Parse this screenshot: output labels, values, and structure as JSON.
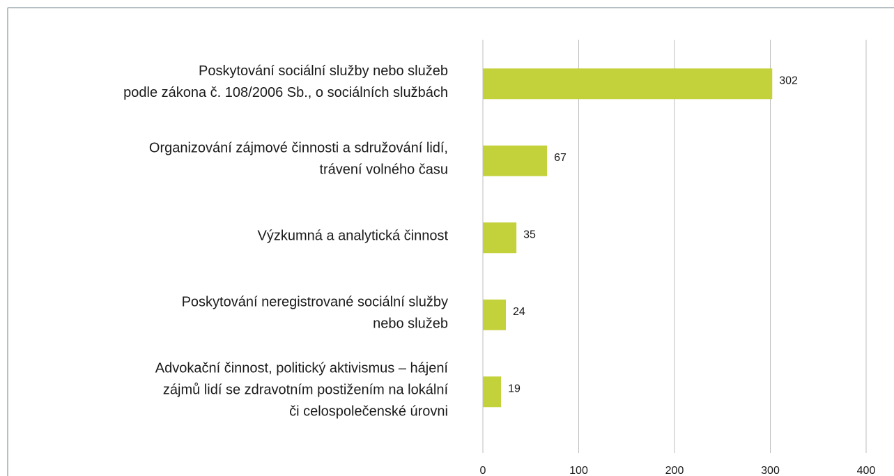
{
  "chart_data": {
    "type": "bar",
    "orientation": "horizontal",
    "categories": [
      [
        "Poskytování sociální služby nebo služeb",
        "podle zákona č. 108/2006 Sb., o sociálních službách"
      ],
      [
        "Organizování zájmové činnosti a sdružování lidí,",
        "trávení volného času"
      ],
      [
        "Výzkumná a analytická činnost"
      ],
      [
        "Poskytování neregistrované sociální služby",
        "nebo služeb"
      ],
      [
        "Advokační činnost, politický aktivismus – hájení",
        "zájmů lidí se zdravotním postižením na lokální",
        "či celospolečenské úrovni"
      ]
    ],
    "values": [
      302,
      67,
      35,
      24,
      19
    ],
    "color": "#c3d13a",
    "xlim": [
      0,
      400
    ],
    "xticks": [
      0,
      100,
      200,
      300,
      400
    ],
    "grid": true
  }
}
